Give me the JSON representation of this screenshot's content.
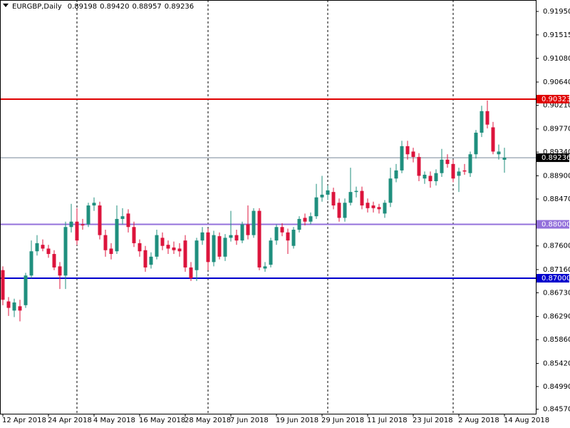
{
  "chart_data": {
    "type": "candlestick",
    "title": "EURGBP,Daily",
    "header_values": [
      "0.89198",
      "0.89420",
      "0.88957",
      "0.89236"
    ],
    "categories": [
      "12 Apr 2018",
      null,
      null,
      null,
      null,
      null,
      null,
      null,
      "24 Apr 2018",
      null,
      null,
      null,
      null,
      null,
      null,
      null,
      "4 May 2018",
      null,
      null,
      null,
      null,
      null,
      null,
      null,
      "16 May 2018",
      null,
      null,
      null,
      null,
      null,
      null,
      null,
      "28 May 2018",
      null,
      null,
      null,
      null,
      null,
      null,
      null,
      "7 Jun 2018",
      null,
      null,
      null,
      null,
      null,
      null,
      null,
      "19 Jun 2018",
      null,
      null,
      null,
      null,
      null,
      null,
      null,
      "29 Jun 2018",
      null,
      null,
      null,
      null,
      null,
      null,
      null,
      "11 Jul 2018",
      null,
      null,
      null,
      null,
      null,
      null,
      null,
      "23 Jul 2018",
      null,
      null,
      null,
      null,
      null,
      null,
      null,
      "2 Aug 2018",
      null,
      null,
      null,
      null,
      null,
      null,
      null,
      "14 Aug 2018"
    ],
    "open": [
      0.8715,
      0.8657,
      0.864,
      0.8648,
      0.865,
      0.8705,
      0.875,
      0.8762,
      0.8755,
      0.8745,
      0.8722,
      0.8705,
      0.8795,
      0.8805,
      0.88,
      0.88,
      0.8835,
      0.8835,
      0.878,
      0.8755,
      0.875,
      0.881,
      0.882,
      0.8795,
      0.8765,
      0.8752,
      0.8725,
      0.874,
      0.8775,
      0.8762,
      0.8757,
      0.8755,
      0.877,
      0.872,
      0.8715,
      0.877,
      0.8785,
      0.873,
      0.8778,
      0.874,
      0.8775,
      0.878,
      0.877,
      0.88,
      0.878,
      0.8825,
      0.8718,
      0.8725,
      0.877,
      0.8795,
      0.8785,
      0.876,
      0.879,
      0.8812,
      0.8805,
      0.8815,
      0.885,
      0.8855,
      0.886,
      0.884,
      0.8812,
      0.884,
      0.886,
      0.8862,
      0.884,
      0.8835,
      0.8832,
      0.882,
      0.884,
      0.8885,
      0.89,
      0.8945,
      0.8935,
      0.8925,
      0.8885,
      0.889,
      0.888,
      0.8895,
      0.892,
      0.8912,
      0.889,
      0.89,
      0.8895,
      0.893,
      0.897,
      0.901,
      0.898,
      0.893,
      0.89198
    ],
    "high": [
      0.8722,
      0.8665,
      0.8662,
      0.866,
      0.871,
      0.877,
      0.878,
      0.8772,
      0.8762,
      0.8752,
      0.873,
      0.8805,
      0.8838,
      0.883,
      0.881,
      0.884,
      0.885,
      0.8842,
      0.879,
      0.8765,
      0.8835,
      0.883,
      0.8828,
      0.8805,
      0.8772,
      0.876,
      0.8748,
      0.879,
      0.8785,
      0.877,
      0.8768,
      0.8765,
      0.878,
      0.873,
      0.8775,
      0.8795,
      0.8792,
      0.8788,
      0.8785,
      0.8782,
      0.8825,
      0.879,
      0.8805,
      0.8835,
      0.883,
      0.883,
      0.873,
      0.8775,
      0.88,
      0.8802,
      0.8792,
      0.8795,
      0.8815,
      0.882,
      0.8822,
      0.8875,
      0.889,
      0.8872,
      0.8868,
      0.8848,
      0.8848,
      0.8905,
      0.887,
      0.887,
      0.8848,
      0.8842,
      0.8838,
      0.8845,
      0.8905,
      0.8912,
      0.8955,
      0.8955,
      0.8942,
      0.8932,
      0.8898,
      0.8898,
      0.8902,
      0.894,
      0.893,
      0.892,
      0.8905,
      0.8912,
      0.8935,
      0.8975,
      0.902,
      0.903,
      0.899,
      0.8948,
      0.8942
    ],
    "low": [
      0.865,
      0.863,
      0.8628,
      0.862,
      0.8645,
      0.87,
      0.8742,
      0.875,
      0.8738,
      0.8715,
      0.868,
      0.868,
      0.8785,
      0.8762,
      0.879,
      0.8795,
      0.8825,
      0.8772,
      0.874,
      0.8735,
      0.8745,
      0.88,
      0.8785,
      0.8758,
      0.874,
      0.8712,
      0.8718,
      0.8735,
      0.8752,
      0.8745,
      0.8745,
      0.874,
      0.8712,
      0.8695,
      0.8695,
      0.8762,
      0.8715,
      0.8722,
      0.8735,
      0.8732,
      0.8768,
      0.8762,
      0.8765,
      0.8772,
      0.8775,
      0.8715,
      0.8712,
      0.872,
      0.8762,
      0.8778,
      0.8745,
      0.8755,
      0.8785,
      0.8798,
      0.88,
      0.881,
      0.8842,
      0.8845,
      0.8828,
      0.8805,
      0.8805,
      0.8835,
      0.885,
      0.8828,
      0.8822,
      0.8822,
      0.882,
      0.8812,
      0.8832,
      0.8878,
      0.8895,
      0.892,
      0.8915,
      0.888,
      0.8875,
      0.8868,
      0.8872,
      0.8888,
      0.8905,
      0.8878,
      0.886,
      0.8892,
      0.8888,
      0.8922,
      0.8962,
      0.8978,
      0.893,
      0.892,
      0.88957
    ],
    "close": [
      0.866,
      0.8645,
      0.8655,
      0.864,
      0.8705,
      0.875,
      0.8765,
      0.8755,
      0.8745,
      0.872,
      0.8705,
      0.8795,
      0.8805,
      0.877,
      0.8798,
      0.8835,
      0.884,
      0.878,
      0.8752,
      0.8745,
      0.881,
      0.8815,
      0.8795,
      0.8765,
      0.875,
      0.872,
      0.874,
      0.878,
      0.876,
      0.8755,
      0.8752,
      0.875,
      0.872,
      0.87,
      0.877,
      0.8785,
      0.873,
      0.878,
      0.874,
      0.8775,
      0.878,
      0.877,
      0.88,
      0.878,
      0.8825,
      0.872,
      0.8722,
      0.877,
      0.8795,
      0.8785,
      0.877,
      0.879,
      0.881,
      0.8805,
      0.8815,
      0.885,
      0.8855,
      0.8863,
      0.8835,
      0.8812,
      0.884,
      0.886,
      0.8862,
      0.8835,
      0.883,
      0.883,
      0.8828,
      0.884,
      0.8885,
      0.89,
      0.8945,
      0.893,
      0.8925,
      0.889,
      0.8892,
      0.888,
      0.8895,
      0.892,
      0.8912,
      0.8885,
      0.8898,
      0.8898,
      0.893,
      0.897,
      0.901,
      0.8985,
      0.8935,
      0.8935,
      0.89236
    ],
    "up_color": "#1f8f7e",
    "down_color": "#dc143c",
    "ylim": [
      0.84486,
      0.92162
    ],
    "yticks": [
      {
        "value": 0.9195,
        "label": "0.91950"
      },
      {
        "value": 0.91515,
        "label": "0.91515"
      },
      {
        "value": 0.9108,
        "label": "0.91080"
      },
      {
        "value": 0.9064,
        "label": "0.90640"
      },
      {
        "value": 0.9021,
        "label": "0.90210"
      },
      {
        "value": 0.8977,
        "label": "0.89770"
      },
      {
        "value": 0.8934,
        "label": "0.89340"
      },
      {
        "value": 0.889,
        "label": "0.88900"
      },
      {
        "value": 0.8847,
        "label": "0.88470"
      },
      {
        "value": 0.876,
        "label": "0.87600"
      },
      {
        "value": 0.8716,
        "label": "0.87160"
      },
      {
        "value": 0.8673,
        "label": "0.86730"
      },
      {
        "value": 0.8629,
        "label": "0.86290"
      },
      {
        "value": 0.8586,
        "label": "0.85860"
      },
      {
        "value": 0.8542,
        "label": "0.85420"
      },
      {
        "value": 0.8499,
        "label": "0.84990"
      },
      {
        "value": 0.8457,
        "label": "0.84570"
      }
    ],
    "hlines": [
      {
        "value": 0.90323,
        "label": "0.90323",
        "color": "#e00000",
        "label_bg": "#e00000",
        "label_fg": "#ffffff"
      },
      {
        "value": 0.89236,
        "label": "0.89236",
        "color": "#778899",
        "label_bg": "#000000",
        "label_fg": "#ffffff"
      },
      {
        "value": 0.88,
        "label": "0.88000",
        "color": "#9370db",
        "label_bg": "#9370db",
        "label_fg": "#ffffff"
      },
      {
        "value": 0.87,
        "label": "0.87000",
        "color": "#0000cd",
        "label_bg": "#0000cd",
        "label_fg": "#ffffff"
      }
    ]
  }
}
